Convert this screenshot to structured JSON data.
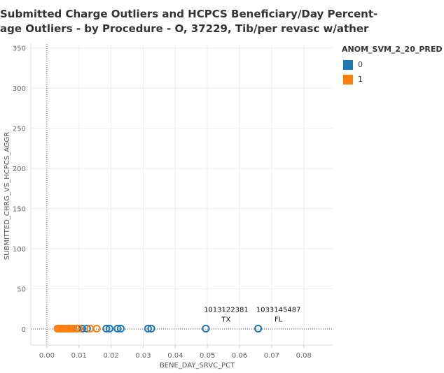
{
  "title_lines": [
    "Submitted Charge Outliers and HCPCS Beneficiary/Day Percent-",
    "age Outliers - by Procedure - O, 37229, Tib/per revasc w/ather"
  ],
  "legend": {
    "title": "ANOM_SVM_2_20_PRED",
    "items": [
      {
        "label": "0",
        "color": "#1f77b4"
      },
      {
        "label": "1",
        "color": "#ff7f0e"
      }
    ]
  },
  "chart_data": {
    "type": "scatter",
    "xlabel": "BENE_DAY_SRVC_PCT",
    "ylabel": "SUBMITTED_CHRG_VS_HCPCS_AGGR",
    "xlim": [
      -0.005,
      0.089
    ],
    "ylim": [
      -20,
      355
    ],
    "xticks": [
      "0.00",
      "0.01",
      "0.02",
      "0.03",
      "0.04",
      "0.05",
      "0.06",
      "0.07",
      "0.08"
    ],
    "yticks": [
      "0",
      "50",
      "100",
      "150",
      "200",
      "250",
      "300",
      "350"
    ],
    "gridlines": true,
    "reference_lines": {
      "x": 0,
      "y": 0
    },
    "series": [
      {
        "name": "0",
        "color": "#1f77b4",
        "marker": "open-circle",
        "points": [
          [
            0.0095,
            0.5
          ],
          [
            0.011,
            0.5
          ],
          [
            0.0125,
            0.5
          ],
          [
            0.0185,
            0.5
          ],
          [
            0.0195,
            0.5
          ],
          [
            0.022,
            0.5
          ],
          [
            0.023,
            0.5
          ],
          [
            0.0315,
            0.5
          ],
          [
            0.0325,
            0.5
          ],
          [
            0.0495,
            0.5
          ],
          [
            0.0658,
            0.5
          ]
        ]
      },
      {
        "name": "1",
        "color": "#ff7f0e",
        "marker": "open-circle",
        "points": [
          [
            0.0033,
            0.5
          ],
          [
            0.0038,
            0.5
          ],
          [
            0.0043,
            0.5
          ],
          [
            0.0048,
            0.5
          ],
          [
            0.0053,
            0.5
          ],
          [
            0.0058,
            0.5
          ],
          [
            0.0063,
            0.5
          ],
          [
            0.0068,
            0.5
          ],
          [
            0.0075,
            0.5
          ],
          [
            0.0082,
            0.5
          ],
          [
            0.009,
            0.5
          ],
          [
            0.01,
            0.5
          ],
          [
            0.0135,
            0.5
          ],
          [
            0.0155,
            0.5
          ]
        ]
      }
    ],
    "annotations": [
      {
        "x": 0.0495,
        "y": 0.5,
        "lines": [
          "1013122381",
          "TX"
        ]
      },
      {
        "x": 0.0658,
        "y": 0.5,
        "lines": [
          "1033145487",
          "FL"
        ]
      }
    ]
  }
}
